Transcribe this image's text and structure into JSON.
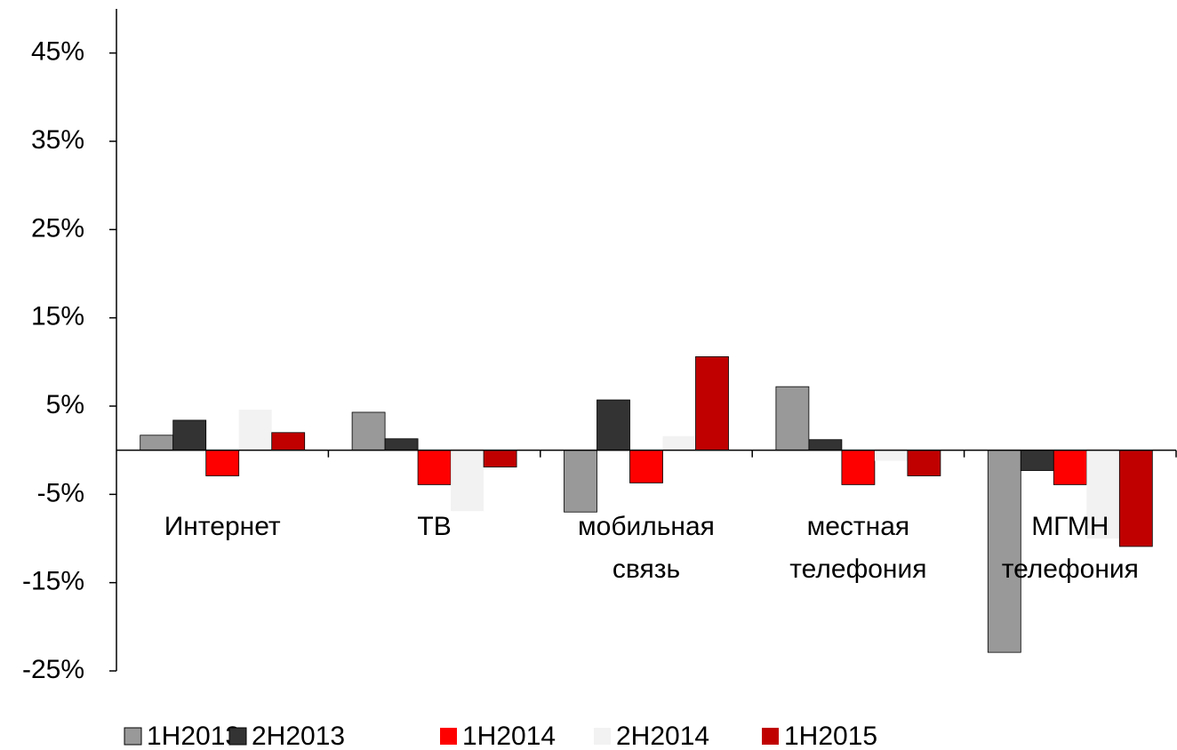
{
  "chart_data": {
    "type": "bar",
    "categories": [
      "Интернет",
      "ТВ",
      "мобильная связь",
      "местная телефония",
      "МГМН телефония"
    ],
    "series": [
      {
        "name": "1H2013",
        "color": "#999999",
        "values": [
          1.7,
          4.3,
          -7.0,
          7.2,
          -22.9
        ]
      },
      {
        "name": "2H2013",
        "color": "#333333",
        "values": [
          3.4,
          1.3,
          5.7,
          1.2,
          -2.3
        ]
      },
      {
        "name": "1H2014",
        "color": "#ff0000",
        "values": [
          -2.9,
          -3.9,
          -3.7,
          -3.9,
          -3.9
        ]
      },
      {
        "name": "2H2014",
        "color": "#f2f2f2",
        "values": [
          4.6,
          -6.9,
          1.6,
          -1.2,
          -10.0
        ]
      },
      {
        "name": "1H2015",
        "color": "#c00000",
        "values": [
          2.0,
          -1.9,
          10.6,
          -2.9,
          -10.9
        ]
      }
    ],
    "ylim": [
      -25,
      50
    ],
    "yticks": [
      {
        "value": -25,
        "label": "-25%"
      },
      {
        "value": -15,
        "label": "-15%"
      },
      {
        "value": -5,
        "label": "-5%"
      },
      {
        "value": 5,
        "label": "5%"
      },
      {
        "value": 15,
        "label": "15%"
      },
      {
        "value": 25,
        "label": "25%"
      },
      {
        "value": 35,
        "label": "35%"
      },
      {
        "value": 45,
        "label": "45%"
      }
    ],
    "grid": false,
    "legend": "bottom"
  }
}
